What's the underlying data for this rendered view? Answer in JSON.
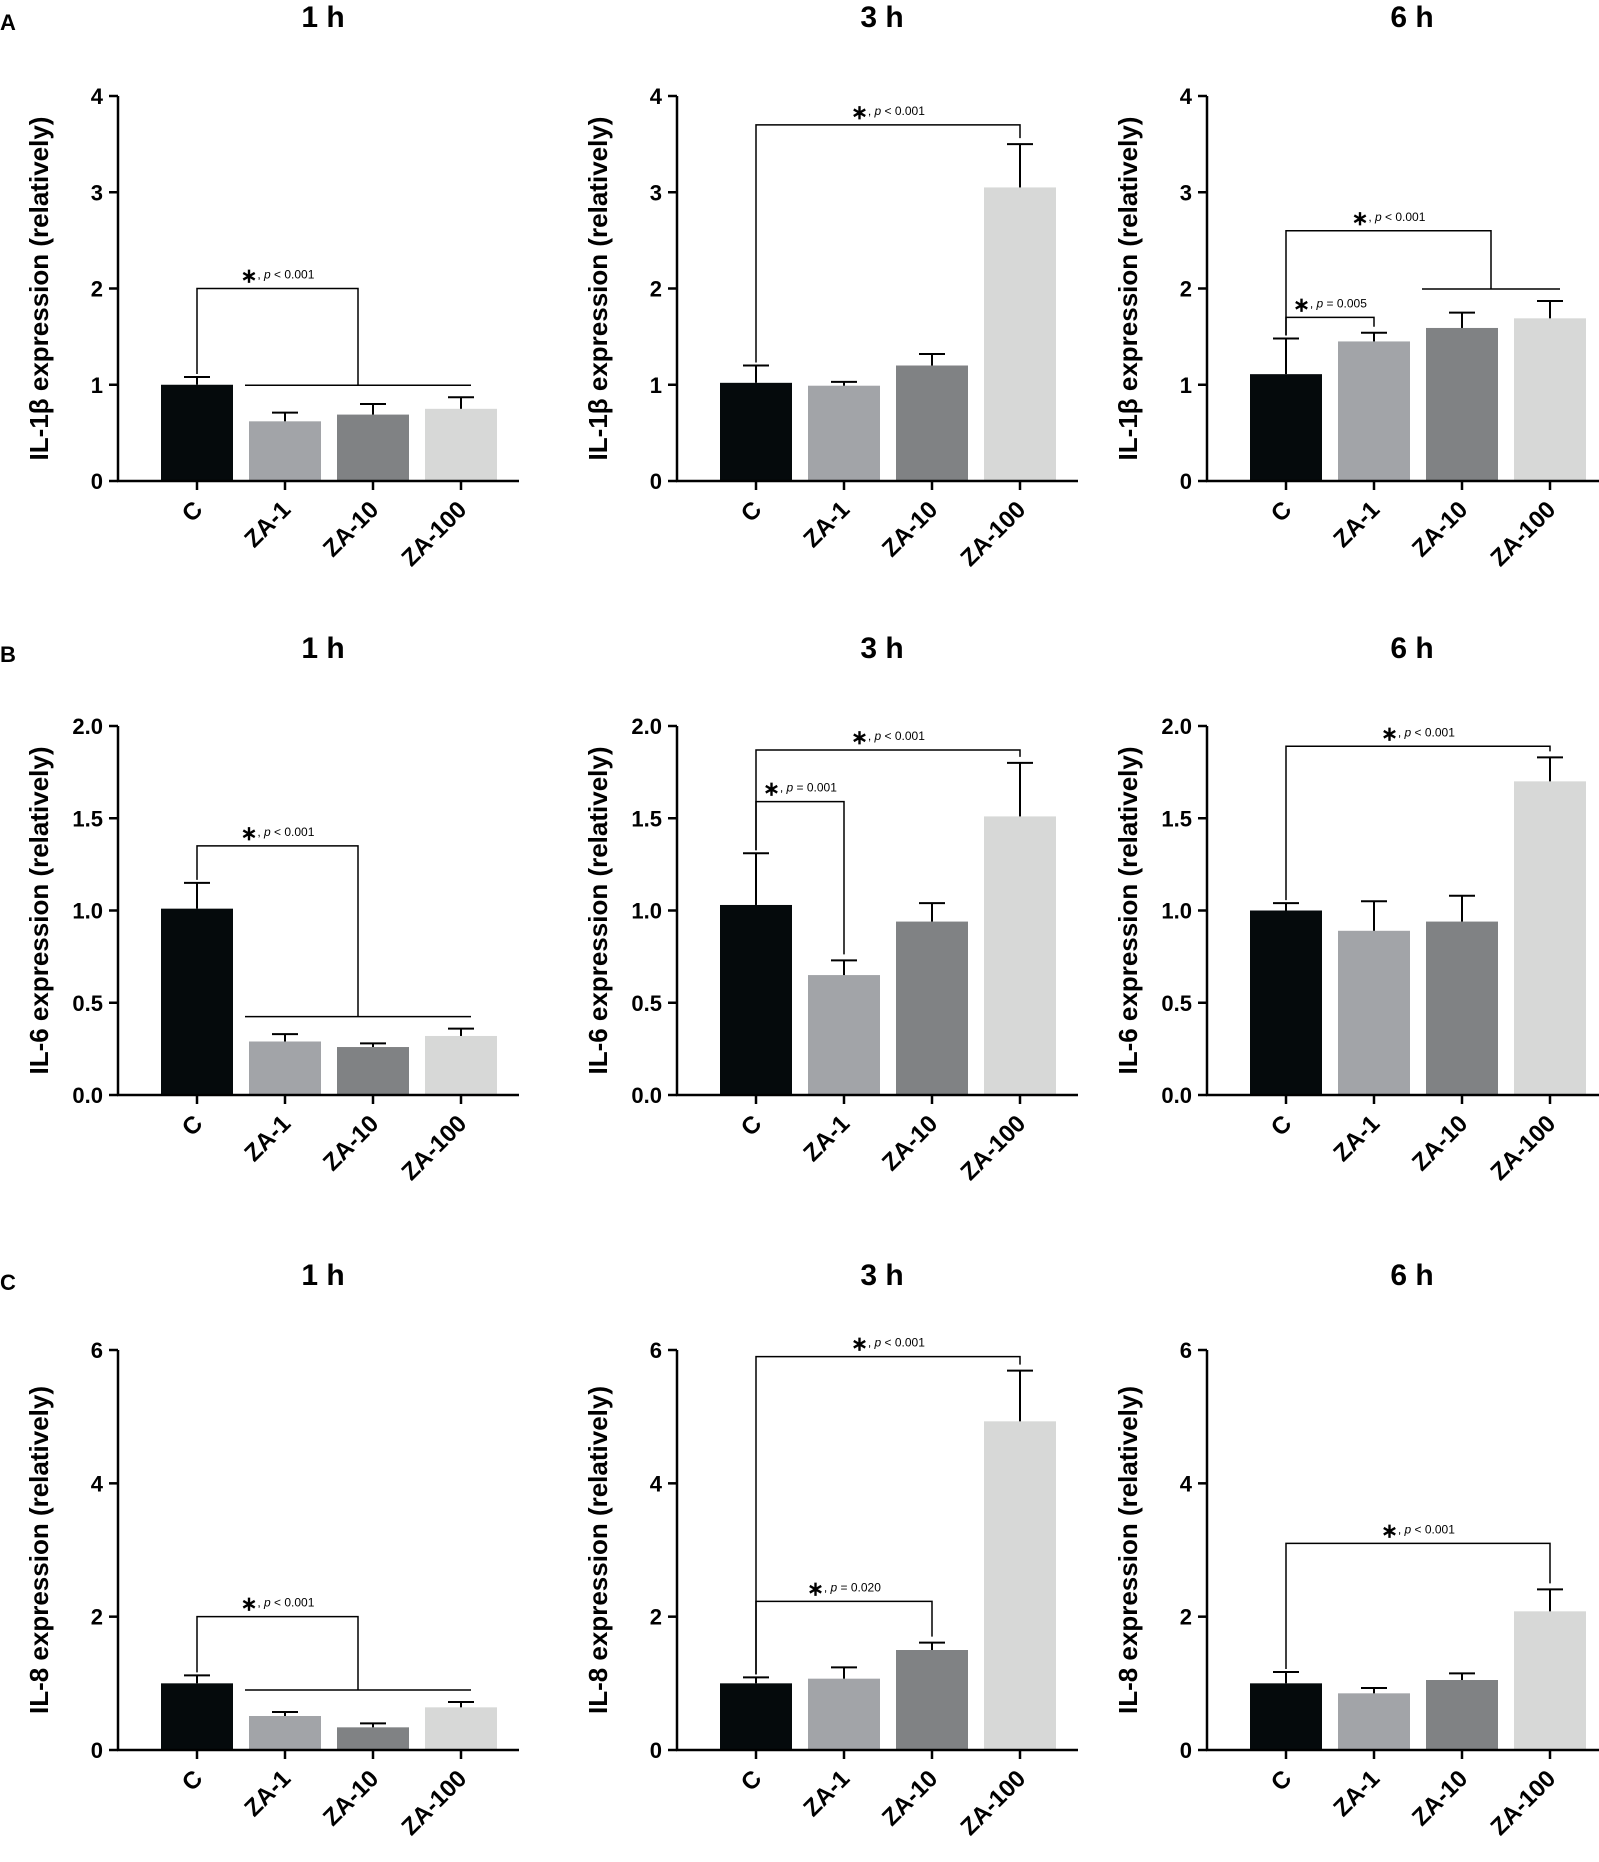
{
  "panels": [
    {
      "label": "A"
    },
    {
      "label": "B"
    },
    {
      "label": "C"
    }
  ],
  "chart_data": [
    {
      "type": "bar",
      "panel": "A",
      "title": "1 h",
      "ylabel": "IL-1β expression (relatively)",
      "xlabel": "",
      "categories": [
        "C",
        "ZA-1",
        "ZA-10",
        "ZA-100"
      ],
      "values": [
        1.0,
        0.62,
        0.69,
        0.75
      ],
      "errors": [
        0.08,
        0.09,
        0.11,
        0.12
      ],
      "ylim": [
        0,
        4
      ],
      "yticks": [
        "0",
        "1",
        "2",
        "3",
        "4"
      ],
      "yticks_values": [
        0,
        1,
        2,
        3,
        4
      ],
      "bar_colors": [
        "#050a0c",
        "#a2a4a8",
        "#808284",
        "#d7d8d7"
      ],
      "significance": [
        {
          "type": "group",
          "from": 0,
          "to": [
            1,
            3
          ],
          "height": 2.0,
          "asterisk": "∗",
          "text": ", p < 0.001"
        }
      ]
    },
    {
      "type": "bar",
      "panel": "A",
      "title": "3 h",
      "ylabel": "IL-1β expression (relatively)",
      "xlabel": "",
      "categories": [
        "C",
        "ZA-1",
        "ZA-10",
        "ZA-100"
      ],
      "values": [
        1.02,
        0.99,
        1.2,
        3.05
      ],
      "errors": [
        0.18,
        0.04,
        0.12,
        0.45
      ],
      "ylim": [
        0,
        4
      ],
      "yticks": [
        "0",
        "1",
        "2",
        "3",
        "4"
      ],
      "yticks_values": [
        0,
        1,
        2,
        3,
        4
      ],
      "bar_colors": [
        "#050a0c",
        "#a2a4a8",
        "#808284",
        "#d7d8d7"
      ],
      "significance": [
        {
          "type": "pair",
          "from": 0,
          "to": 3,
          "height": 3.7,
          "asterisk": "∗",
          "text": ", p < 0.001"
        }
      ]
    },
    {
      "type": "bar",
      "panel": "A",
      "title": "6 h",
      "ylabel": "IL-1β expression (relatively)",
      "xlabel": "",
      "categories": [
        "C",
        "ZA-1",
        "ZA-10",
        "ZA-100"
      ],
      "values": [
        1.11,
        1.45,
        1.59,
        1.69
      ],
      "errors": [
        0.37,
        0.09,
        0.16,
        0.18
      ],
      "ylim": [
        0,
        4
      ],
      "yticks": [
        "0",
        "1",
        "2",
        "3",
        "4"
      ],
      "yticks_values": [
        0,
        1,
        2,
        3,
        4
      ],
      "bar_colors": [
        "#050a0c",
        "#a2a4a8",
        "#808284",
        "#d7d8d7"
      ],
      "significance": [
        {
          "type": "pair",
          "from": 0,
          "to": 1,
          "height": 1.7,
          "asterisk": "∗",
          "text": ", p = 0.005"
        },
        {
          "type": "group",
          "from": 0,
          "to": [
            2,
            3
          ],
          "height": 2.6,
          "asterisk": "∗",
          "text": ", p < 0.001"
        }
      ]
    },
    {
      "type": "bar",
      "panel": "B",
      "title": "1 h",
      "ylabel": "IL-6 expression (relatively)",
      "xlabel": "",
      "categories": [
        "C",
        "ZA-1",
        "ZA-10",
        "ZA-100"
      ],
      "values": [
        1.01,
        0.29,
        0.26,
        0.32
      ],
      "errors": [
        0.14,
        0.04,
        0.02,
        0.04
      ],
      "ylim": [
        0,
        2
      ],
      "yticks": [
        "0.0",
        "0.5",
        "1.0",
        "1.5",
        "2.0"
      ],
      "yticks_values": [
        0,
        0.5,
        1,
        1.5,
        2
      ],
      "bar_colors": [
        "#050a0c",
        "#a2a4a8",
        "#808284",
        "#d7d8d7"
      ],
      "significance": [
        {
          "type": "group",
          "from": 0,
          "to": [
            1,
            3
          ],
          "height": 1.35,
          "asterisk": "∗",
          "text": ", p < 0.001"
        }
      ]
    },
    {
      "type": "bar",
      "panel": "B",
      "title": "3 h",
      "ylabel": "IL-6 expression (relatively)",
      "xlabel": "",
      "categories": [
        "C",
        "ZA-1",
        "ZA-10",
        "ZA-100"
      ],
      "values": [
        1.03,
        0.65,
        0.94,
        1.51
      ],
      "errors": [
        0.28,
        0.08,
        0.1,
        0.29
      ],
      "ylim": [
        0,
        2
      ],
      "yticks": [
        "0.0",
        "0.5",
        "1.0",
        "1.5",
        "2.0"
      ],
      "yticks_values": [
        0,
        0.5,
        1,
        1.5,
        2
      ],
      "bar_colors": [
        "#050a0c",
        "#a2a4a8",
        "#808284",
        "#d7d8d7"
      ],
      "significance": [
        {
          "type": "pair",
          "from": 0,
          "to": 1,
          "height": 1.59,
          "asterisk": "∗",
          "text": ", p = 0.001"
        },
        {
          "type": "pair",
          "from": 0,
          "to": 3,
          "height": 1.87,
          "asterisk": "∗",
          "text": ", p < 0.001"
        }
      ]
    },
    {
      "type": "bar",
      "panel": "B",
      "title": "6 h",
      "ylabel": "IL-6 expression (relatively)",
      "xlabel": "",
      "categories": [
        "C",
        "ZA-1",
        "ZA-10",
        "ZA-100"
      ],
      "values": [
        1.0,
        0.89,
        0.94,
        1.7
      ],
      "errors": [
        0.04,
        0.16,
        0.14,
        0.13
      ],
      "ylim": [
        0,
        2
      ],
      "yticks": [
        "0.0",
        "0.5",
        "1.0",
        "1.5",
        "2.0"
      ],
      "yticks_values": [
        0,
        0.5,
        1,
        1.5,
        2
      ],
      "bar_colors": [
        "#050a0c",
        "#a2a4a8",
        "#808284",
        "#d7d8d7"
      ],
      "significance": [
        {
          "type": "pair",
          "from": 0,
          "to": 3,
          "height": 1.89,
          "asterisk": "∗",
          "text": ", p < 0.001"
        }
      ]
    },
    {
      "type": "bar",
      "panel": "C",
      "title": "1 h",
      "ylabel": "IL-8 expression (relatively)",
      "xlabel": "",
      "categories": [
        "C",
        "ZA-1",
        "ZA-10",
        "ZA-100"
      ],
      "values": [
        1.0,
        0.51,
        0.34,
        0.64
      ],
      "errors": [
        0.12,
        0.06,
        0.06,
        0.08
      ],
      "ylim": [
        0,
        6
      ],
      "yticks": [
        "0",
        "2",
        "4",
        "6"
      ],
      "yticks_values": [
        0,
        2,
        4,
        6
      ],
      "bar_colors": [
        "#050a0c",
        "#a2a4a8",
        "#808284",
        "#d7d8d7"
      ],
      "significance": [
        {
          "type": "group",
          "from": 0,
          "to": [
            1,
            3
          ],
          "height": 2.0,
          "asterisk": "∗",
          "text": ", p < 0.001"
        }
      ]
    },
    {
      "type": "bar",
      "panel": "C",
      "title": "3 h",
      "ylabel": "IL-8 expression (relatively)",
      "xlabel": "",
      "categories": [
        "C",
        "ZA-1",
        "ZA-10",
        "ZA-100"
      ],
      "values": [
        1.0,
        1.07,
        1.5,
        4.93
      ],
      "errors": [
        0.09,
        0.17,
        0.11,
        0.76
      ],
      "ylim": [
        0,
        6
      ],
      "yticks": [
        "0",
        "2",
        "4",
        "6"
      ],
      "yticks_values": [
        0,
        2,
        4,
        6
      ],
      "bar_colors": [
        "#050a0c",
        "#a2a4a8",
        "#808284",
        "#d7d8d7"
      ],
      "significance": [
        {
          "type": "pair",
          "from": 0,
          "to": 2,
          "height": 2.23,
          "asterisk": "∗",
          "text": ", p = 0.020"
        },
        {
          "type": "pair",
          "from": 0,
          "to": 3,
          "height": 5.9,
          "asterisk": "∗",
          "text": ", p < 0.001"
        }
      ]
    },
    {
      "type": "bar",
      "panel": "C",
      "title": "6 h",
      "ylabel": "IL-8 expression (relatively)",
      "xlabel": "",
      "categories": [
        "C",
        "ZA-1",
        "ZA-10",
        "ZA-100"
      ],
      "values": [
        1.0,
        0.85,
        1.05,
        2.08
      ],
      "errors": [
        0.17,
        0.08,
        0.1,
        0.33
      ],
      "ylim": [
        0,
        6
      ],
      "yticks": [
        "0",
        "2",
        "4",
        "6"
      ],
      "yticks_values": [
        0,
        2,
        4,
        6
      ],
      "bar_colors": [
        "#050a0c",
        "#a2a4a8",
        "#808284",
        "#d7d8d7"
      ],
      "significance": [
        {
          "type": "pair",
          "from": 0,
          "to": 3,
          "height": 3.1,
          "asterisk": "∗",
          "text": ", p < 0.001"
        }
      ]
    }
  ]
}
